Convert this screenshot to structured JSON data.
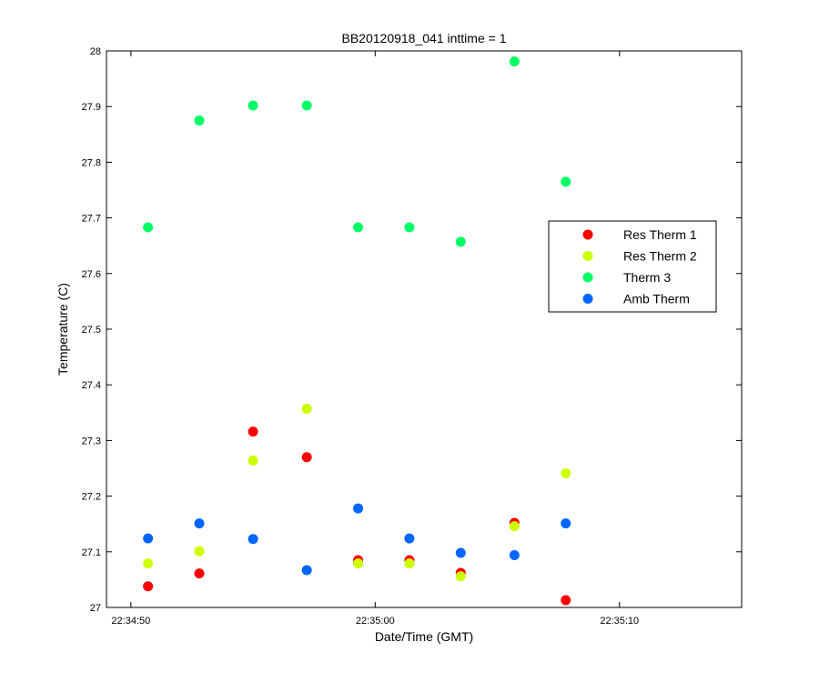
{
  "chart_data": {
    "type": "scatter",
    "title": "BB20120918_041 inttime = 1",
    "xlabel": "Date/Time (GMT)",
    "ylabel": "Temperature (C)",
    "x_scale": "time",
    "xlim": [
      "22:34:49",
      "22:35:15"
    ],
    "ylim": [
      27,
      28
    ],
    "x_ticks": [
      "22:34:50",
      "22:35:00",
      "22:35:10"
    ],
    "y_ticks": [
      "27",
      "27.1",
      "27.2",
      "27.3",
      "27.4",
      "27.5",
      "27.6",
      "27.7",
      "27.8",
      "27.9",
      "28"
    ],
    "grid": false,
    "legend_position": "right",
    "x": [
      "22:34:50.7",
      "22:34:52.8",
      "22:34:55.0",
      "22:34:57.2",
      "22:34:59.3",
      "22:35:01.4",
      "22:35:03.5",
      "22:35:05.7",
      "22:35:07.8"
    ],
    "series": [
      {
        "name": "Res Therm 1",
        "color": "#ff0000",
        "values": [
          27.038,
          27.061,
          27.316,
          27.27,
          27.085,
          27.085,
          27.062,
          27.152,
          27.013
        ]
      },
      {
        "name": "Res Therm 2",
        "color": "#ccff00",
        "values": [
          27.079,
          27.101,
          27.264,
          27.357,
          27.079,
          27.079,
          27.056,
          27.146,
          27.241
        ]
      },
      {
        "name": "Therm 3",
        "color": "#00ff66",
        "values": [
          27.683,
          27.875,
          27.902,
          27.902,
          27.683,
          27.683,
          27.657,
          27.981,
          27.765
        ]
      },
      {
        "name": "Amb Therm",
        "color": "#0066ff",
        "values": [
          27.124,
          27.151,
          27.123,
          27.067,
          27.178,
          27.124,
          27.098,
          27.094,
          27.151
        ]
      }
    ]
  }
}
